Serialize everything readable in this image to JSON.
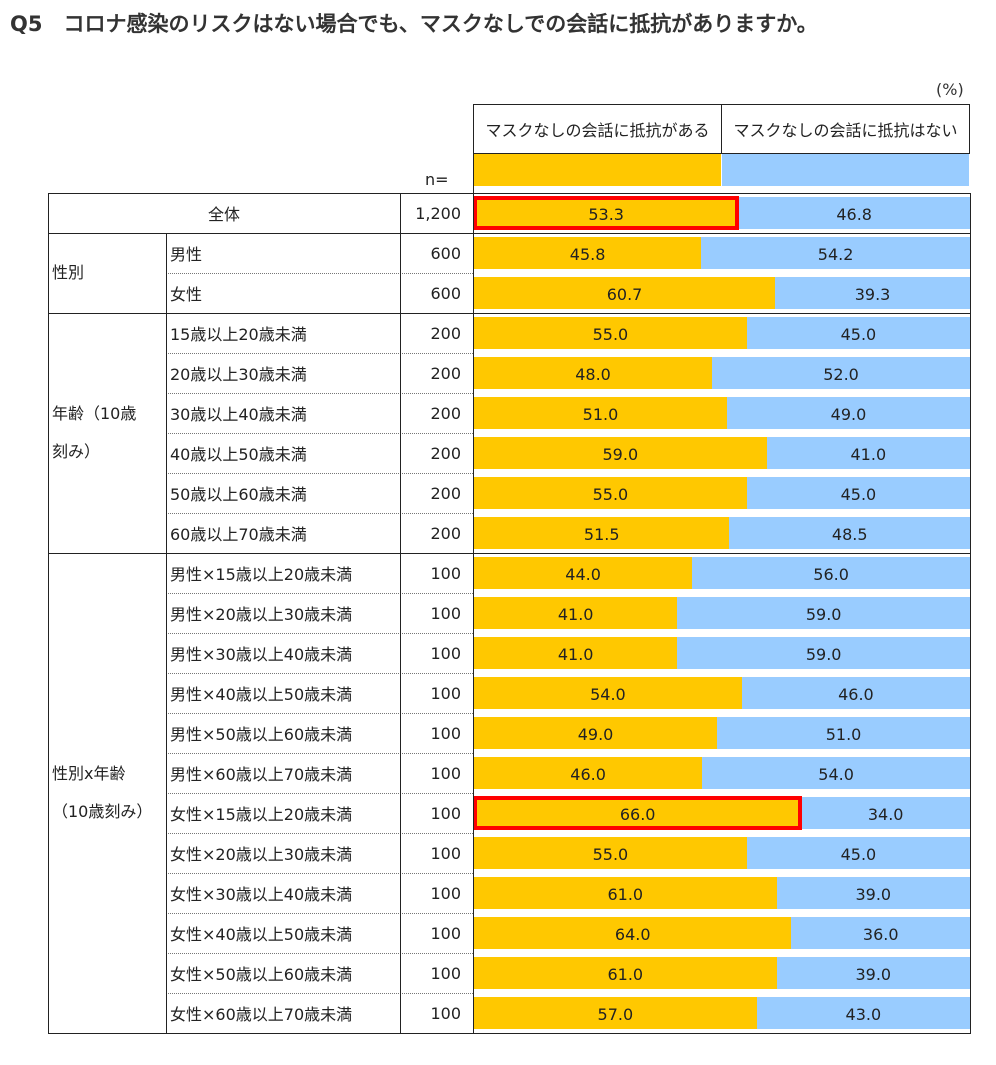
{
  "title": "Q5　コロナ感染のリスクはない場合でも、マスクなしでの会話に抵抗がありますか。",
  "unit": "(%)",
  "n_header": "n=",
  "colors": {
    "yes": "#ffc800",
    "no": "#99ccff",
    "highlight": "#ff0000"
  },
  "chart_data": {
    "type": "bar",
    "stacked": true,
    "orientation": "horizontal",
    "xlim": [
      0,
      100
    ],
    "series": [
      {
        "name": "マスクなしの会話に抵抗がある",
        "color": "#ffc800"
      },
      {
        "name": "マスクなしの会話に抵抗はない",
        "color": "#99ccff"
      }
    ],
    "groups": [
      {
        "label": "",
        "rows": [
          {
            "label": "全体",
            "n": "1,200",
            "values": [
              53.3,
              46.8
            ],
            "highlight": true
          }
        ]
      },
      {
        "label": "性別",
        "rows": [
          {
            "label": "男性",
            "n": "600",
            "values": [
              45.8,
              54.2
            ]
          },
          {
            "label": "女性",
            "n": "600",
            "values": [
              60.7,
              39.3
            ]
          }
        ]
      },
      {
        "label": "年齢（10歳\n刻み）",
        "rows": [
          {
            "label": "15歳以上20歳未満",
            "n": "200",
            "values": [
              55.0,
              45.0
            ]
          },
          {
            "label": "20歳以上30歳未満",
            "n": "200",
            "values": [
              48.0,
              52.0
            ]
          },
          {
            "label": "30歳以上40歳未満",
            "n": "200",
            "values": [
              51.0,
              49.0
            ]
          },
          {
            "label": "40歳以上50歳未満",
            "n": "200",
            "values": [
              59.0,
              41.0
            ]
          },
          {
            "label": "50歳以上60歳未満",
            "n": "200",
            "values": [
              55.0,
              45.0
            ]
          },
          {
            "label": "60歳以上70歳未満",
            "n": "200",
            "values": [
              51.5,
              48.5
            ]
          }
        ]
      },
      {
        "label": "性別x年齢\n（10歳刻み）",
        "rows": [
          {
            "label": "男性×15歳以上20歳未満",
            "n": "100",
            "values": [
              44.0,
              56.0
            ]
          },
          {
            "label": "男性×20歳以上30歳未満",
            "n": "100",
            "values": [
              41.0,
              59.0
            ]
          },
          {
            "label": "男性×30歳以上40歳未満",
            "n": "100",
            "values": [
              41.0,
              59.0
            ]
          },
          {
            "label": "男性×40歳以上50歳未満",
            "n": "100",
            "values": [
              54.0,
              46.0
            ]
          },
          {
            "label": "男性×50歳以上60歳未満",
            "n": "100",
            "values": [
              49.0,
              51.0
            ]
          },
          {
            "label": "男性×60歳以上70歳未満",
            "n": "100",
            "values": [
              46.0,
              54.0
            ]
          },
          {
            "label": "女性×15歳以上20歳未満",
            "n": "100",
            "values": [
              66.0,
              34.0
            ],
            "highlight": true
          },
          {
            "label": "女性×20歳以上30歳未満",
            "n": "100",
            "values": [
              55.0,
              45.0
            ]
          },
          {
            "label": "女性×30歳以上40歳未満",
            "n": "100",
            "values": [
              61.0,
              39.0
            ]
          },
          {
            "label": "女性×40歳以上50歳未満",
            "n": "100",
            "values": [
              64.0,
              36.0
            ]
          },
          {
            "label": "女性×50歳以上60歳未満",
            "n": "100",
            "values": [
              61.0,
              39.0
            ]
          },
          {
            "label": "女性×60歳以上70歳未満",
            "n": "100",
            "values": [
              57.0,
              43.0
            ]
          }
        ]
      }
    ]
  }
}
